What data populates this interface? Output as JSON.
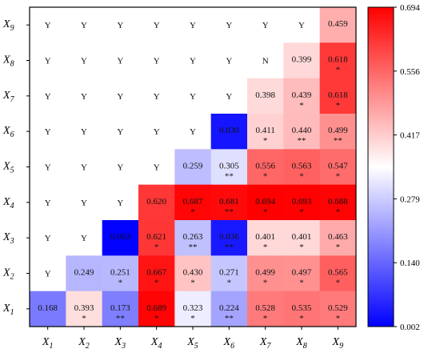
{
  "chart_data": {
    "type": "heatmap",
    "x_labels": [
      {
        "base": "X",
        "sub": "1"
      },
      {
        "base": "X",
        "sub": "2"
      },
      {
        "base": "X",
        "sub": "3"
      },
      {
        "base": "X",
        "sub": "4"
      },
      {
        "base": "X",
        "sub": "5"
      },
      {
        "base": "X",
        "sub": "6"
      },
      {
        "base": "X",
        "sub": "7"
      },
      {
        "base": "X",
        "sub": "8"
      },
      {
        "base": "X",
        "sub": "9"
      }
    ],
    "y_labels_top_to_bottom": [
      {
        "base": "X",
        "sub": "9"
      },
      {
        "base": "X",
        "sub": "8"
      },
      {
        "base": "X",
        "sub": "7"
      },
      {
        "base": "X",
        "sub": "6"
      },
      {
        "base": "X",
        "sub": "5"
      },
      {
        "base": "X",
        "sub": "4"
      },
      {
        "base": "X",
        "sub": "3"
      },
      {
        "base": "X",
        "sub": "2"
      },
      {
        "base": "X",
        "sub": "1"
      }
    ],
    "rows_top_to_bottom": [
      [
        {
          "t": "Y"
        },
        {
          "t": "Y"
        },
        {
          "t": "Y"
        },
        {
          "t": "Y"
        },
        {
          "t": "Y"
        },
        {
          "t": "Y"
        },
        {
          "t": "Y"
        },
        {
          "t": "Y"
        },
        {
          "v": 0.459,
          "t": "0.459",
          "s": ""
        }
      ],
      [
        {
          "t": "Y"
        },
        {
          "t": "Y"
        },
        {
          "t": "Y"
        },
        {
          "t": "Y"
        },
        {
          "t": "Y"
        },
        {
          "t": "Y"
        },
        {
          "t": "N"
        },
        {
          "v": 0.399,
          "t": "0.399",
          "s": ""
        },
        {
          "v": 0.618,
          "t": "0.618",
          "s": "*"
        }
      ],
      [
        {
          "t": "Y"
        },
        {
          "t": "Y"
        },
        {
          "t": "Y"
        },
        {
          "t": "Y"
        },
        {
          "t": "Y"
        },
        {
          "t": "Y"
        },
        {
          "v": 0.398,
          "t": "0.398",
          "s": ""
        },
        {
          "v": 0.439,
          "t": "0.439",
          "s": "*"
        },
        {
          "v": 0.618,
          "t": "0.618",
          "s": "*"
        }
      ],
      [
        {
          "t": "Y"
        },
        {
          "t": "Y"
        },
        {
          "t": "Y"
        },
        {
          "t": "Y"
        },
        {
          "t": "Y"
        },
        {
          "v": 0.03,
          "t": "0.030",
          "s": ""
        },
        {
          "v": 0.411,
          "t": "0.411",
          "s": "*"
        },
        {
          "v": 0.44,
          "t": "0.440",
          "s": "**"
        },
        {
          "v": 0.499,
          "t": "0.499",
          "s": "**"
        }
      ],
      [
        {
          "t": "Y"
        },
        {
          "t": "Y"
        },
        {
          "t": "Y"
        },
        {
          "t": "Y"
        },
        {
          "v": 0.259,
          "t": "0.259",
          "s": ""
        },
        {
          "v": 0.305,
          "t": "0.305",
          "s": "**"
        },
        {
          "v": 0.556,
          "t": "0.556",
          "s": "*"
        },
        {
          "v": 0.563,
          "t": "0.563",
          "s": "*"
        },
        {
          "v": 0.547,
          "t": "0.547",
          "s": "*"
        }
      ],
      [
        {
          "t": "Y"
        },
        {
          "t": "Y"
        },
        {
          "t": "Y"
        },
        {
          "v": 0.62,
          "t": "0.620",
          "s": ""
        },
        {
          "v": 0.687,
          "t": "0.687",
          "s": "*"
        },
        {
          "v": 0.681,
          "t": "0.681",
          "s": "**"
        },
        {
          "v": 0.694,
          "t": "0.694",
          "s": "*"
        },
        {
          "v": 0.693,
          "t": "0.693",
          "s": "*"
        },
        {
          "v": 0.688,
          "t": "0.688",
          "s": "*"
        }
      ],
      [
        {
          "t": "Y"
        },
        {
          "t": "Y"
        },
        {
          "v": 0.003,
          "t": "0.003",
          "s": ""
        },
        {
          "v": 0.621,
          "t": "0.621",
          "s": "*"
        },
        {
          "v": 0.263,
          "t": "0.263",
          "s": "**"
        },
        {
          "v": 0.036,
          "t": "0.036",
          "s": "**"
        },
        {
          "v": 0.401,
          "t": "0.401",
          "s": "*"
        },
        {
          "v": 0.401,
          "t": "0.401",
          "s": "*"
        },
        {
          "v": 0.463,
          "t": "0.463",
          "s": "*"
        }
      ],
      [
        {
          "t": "Y"
        },
        {
          "v": 0.249,
          "t": "0.249",
          "s": ""
        },
        {
          "v": 0.251,
          "t": "0.251",
          "s": "*"
        },
        {
          "v": 0.667,
          "t": "0.667",
          "s": "*"
        },
        {
          "v": 0.43,
          "t": "0.430",
          "s": "*"
        },
        {
          "v": 0.271,
          "t": "0.271",
          "s": "*"
        },
        {
          "v": 0.499,
          "t": "0.499",
          "s": "*"
        },
        {
          "v": 0.497,
          "t": "0.497",
          "s": "*"
        },
        {
          "v": 0.565,
          "t": "0.565",
          "s": "*"
        }
      ],
      [
        {
          "v": 0.168,
          "t": "0.168",
          "s": ""
        },
        {
          "v": 0.393,
          "t": "0.393",
          "s": "*"
        },
        {
          "v": 0.173,
          "t": "0.173",
          "s": "**"
        },
        {
          "v": 0.689,
          "t": "0.689",
          "s": "*"
        },
        {
          "v": 0.323,
          "t": "0.323",
          "s": "*"
        },
        {
          "v": 0.224,
          "t": "0.224",
          "s": "**"
        },
        {
          "v": 0.528,
          "t": "0.528",
          "s": "*"
        },
        {
          "v": 0.535,
          "t": "0.535",
          "s": "*"
        },
        {
          "v": 0.529,
          "t": "0.529",
          "s": "*"
        }
      ]
    ],
    "colorbar": {
      "min": 0.002,
      "max": 0.694,
      "tick_labels": [
        "0.694",
        "0.556",
        "0.417",
        "0.279",
        "0.140",
        "0.002"
      ],
      "colors": {
        "low": "#0000ff",
        "mid": "#ffffff",
        "high": "#ff0000"
      }
    },
    "grid": false,
    "legend": "right colorbar"
  }
}
